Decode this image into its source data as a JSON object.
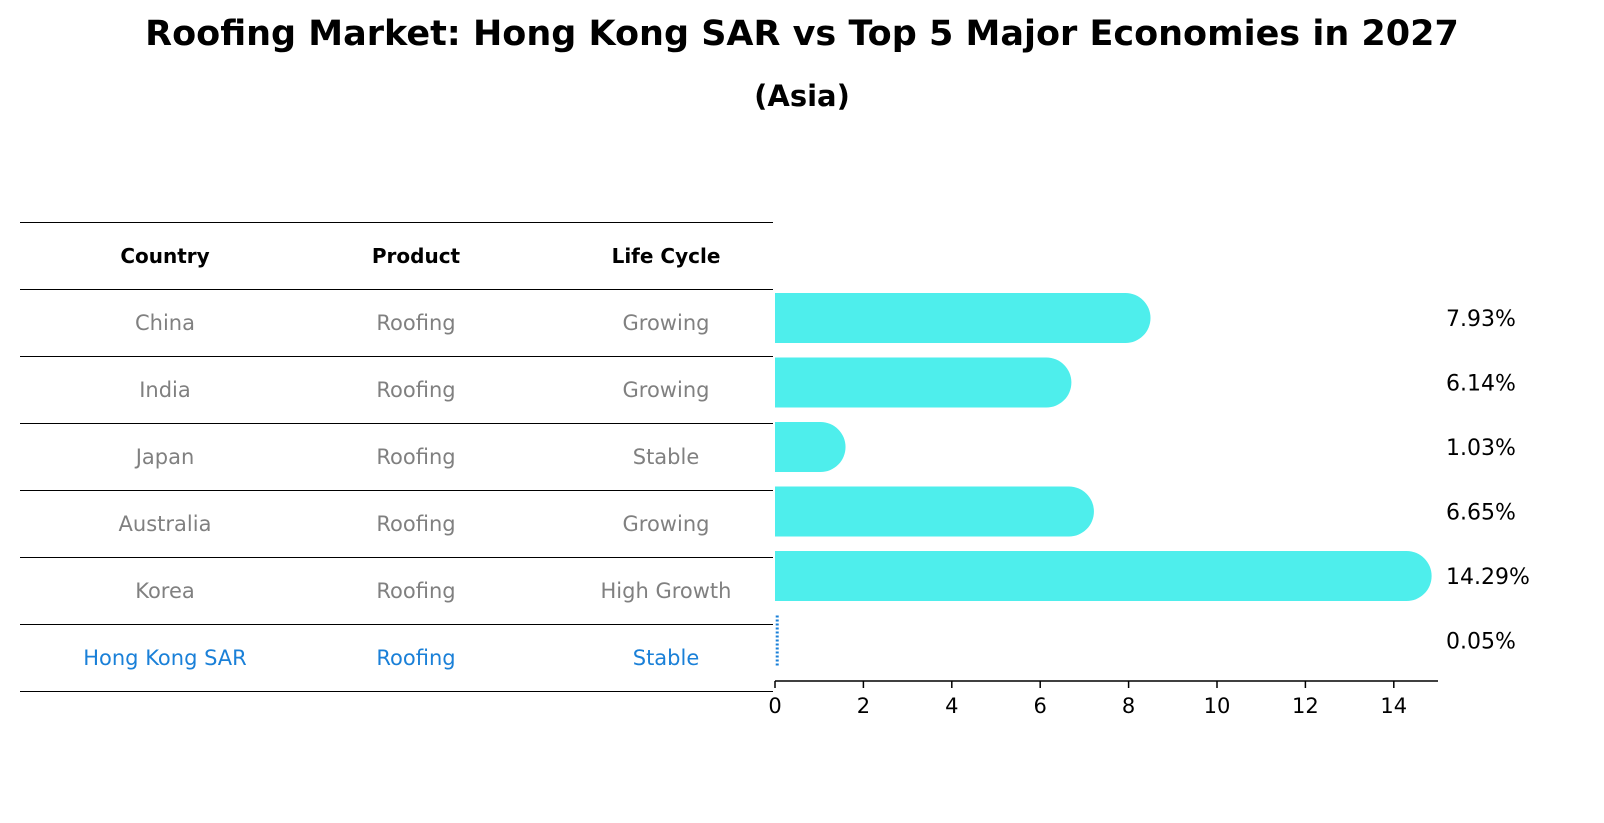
{
  "title": "Roofing Market: Hong Kong SAR vs Top 5 Major Economies in 2027",
  "subtitle": "(Asia)",
  "table": {
    "headers": [
      "Country",
      "Product",
      "Life Cycle"
    ],
    "rows": [
      [
        "China",
        "Roofing",
        "Growing"
      ],
      [
        "India",
        "Roofing",
        "Growing"
      ],
      [
        "Japan",
        "Roofing",
        "Stable"
      ],
      [
        "Australia",
        "Roofing",
        "Growing"
      ],
      [
        "Korea",
        "Roofing",
        "High Growth"
      ],
      [
        "Hong Kong SAR",
        "Roofing",
        "Stable"
      ]
    ]
  },
  "colors": {
    "bar": "#4eeeec",
    "highlight": "#1a80d8",
    "muted_text": "#808080"
  },
  "chart_data": {
    "type": "bar",
    "orientation": "horizontal",
    "categories": [
      "China",
      "India",
      "Japan",
      "Australia",
      "Korea",
      "Hong Kong SAR"
    ],
    "values": [
      7.93,
      6.14,
      1.03,
      6.65,
      14.29,
      0.05
    ],
    "value_labels": [
      "7.93%",
      "6.14%",
      "1.03%",
      "6.65%",
      "14.29%",
      "0.05%"
    ],
    "xlim": [
      0,
      15
    ],
    "xticks": [
      0,
      2,
      4,
      6,
      8,
      10,
      12,
      14
    ],
    "highlight_category": "Hong Kong SAR",
    "grid": false
  }
}
